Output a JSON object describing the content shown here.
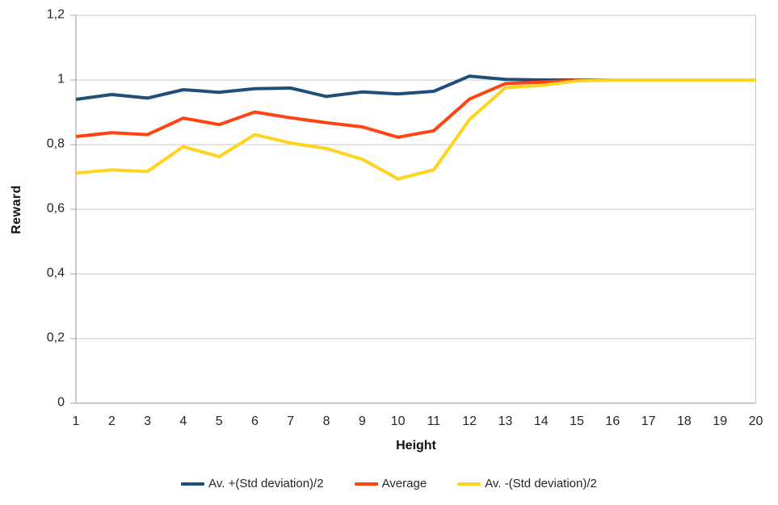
{
  "chart_data": {
    "type": "line",
    "title": "",
    "xlabel": "Height",
    "ylabel": "Reward",
    "x": [
      1,
      2,
      3,
      4,
      5,
      6,
      7,
      8,
      9,
      10,
      11,
      12,
      13,
      14,
      15,
      16,
      17,
      18,
      19,
      20
    ],
    "series": [
      {
        "name": "Av. +(Std deviation)/2",
        "color": "#1F4E79",
        "values": [
          0.94,
          0.955,
          0.944,
          0.97,
          0.962,
          0.973,
          0.975,
          0.949,
          0.963,
          0.957,
          0.965,
          1.012,
          1.002,
          1.0,
          1.0,
          1.0,
          1.0,
          1.0,
          1.0,
          1.0
        ]
      },
      {
        "name": "Average",
        "color": "#FF4313",
        "values": [
          0.825,
          0.837,
          0.831,
          0.882,
          0.862,
          0.901,
          0.883,
          0.868,
          0.855,
          0.823,
          0.843,
          0.941,
          0.989,
          0.993,
          0.999,
          1.0,
          1.0,
          1.0,
          1.0,
          1.0
        ]
      },
      {
        "name": "Av. -(Std deviation)/2",
        "color": "#FFD320",
        "values": [
          0.712,
          0.722,
          0.717,
          0.794,
          0.763,
          0.831,
          0.805,
          0.788,
          0.755,
          0.694,
          0.722,
          0.878,
          0.976,
          0.983,
          0.997,
          1.0,
          1.0,
          1.0,
          1.0,
          1.0
        ]
      }
    ],
    "ylim": [
      0,
      1.2
    ],
    "y_ticks": {
      "values": [
        0,
        0.2,
        0.4,
        0.6,
        0.8,
        1,
        1.2
      ],
      "labels": [
        "0",
        "0,2",
        "0,4",
        "0,6",
        "0,8",
        "1",
        "1,2"
      ]
    },
    "x_tick_labels": [
      "1",
      "2",
      "3",
      "4",
      "5",
      "6",
      "7",
      "8",
      "9",
      "10",
      "11",
      "12",
      "13",
      "14",
      "15",
      "16",
      "17",
      "18",
      "19",
      "20"
    ],
    "grid": "horizontal",
    "legend_position": "bottom",
    "line_width": 4,
    "colors": {
      "gridline": "#C9C9C9",
      "axis": "#A6A6A6",
      "tick_text": "#262626",
      "title_text": "#111111",
      "background": "#FFFFFF"
    }
  }
}
